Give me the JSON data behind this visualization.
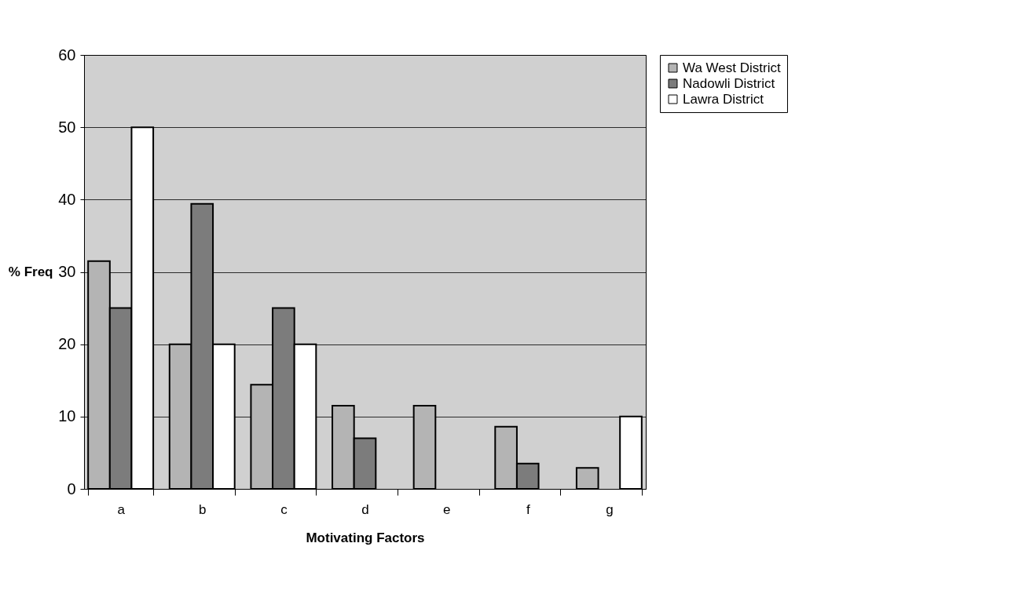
{
  "chart_data": {
    "type": "bar",
    "xlabel": "Motivating Factors",
    "ylabel": "% Freq",
    "categories": [
      "a",
      "b",
      "c",
      "d",
      "e",
      "f",
      "g"
    ],
    "series": [
      {
        "name": "Wa West District",
        "color": "#b4b4b4",
        "values": [
          31.5,
          20,
          14.4,
          11.5,
          11.5,
          8.6,
          2.9
        ]
      },
      {
        "name": "Nadowli District",
        "color": "#7c7c7c",
        "values": [
          25,
          39.4,
          25,
          7,
          null,
          3.5,
          null
        ]
      },
      {
        "name": "Lawra District",
        "color": "#ffffff",
        "values": [
          50,
          20,
          20,
          null,
          null,
          null,
          10
        ]
      }
    ],
    "ylim": [
      0,
      60
    ],
    "yticks": [
      0,
      10,
      20,
      30,
      40,
      50,
      60
    ],
    "grid": "y",
    "legend": "right"
  }
}
